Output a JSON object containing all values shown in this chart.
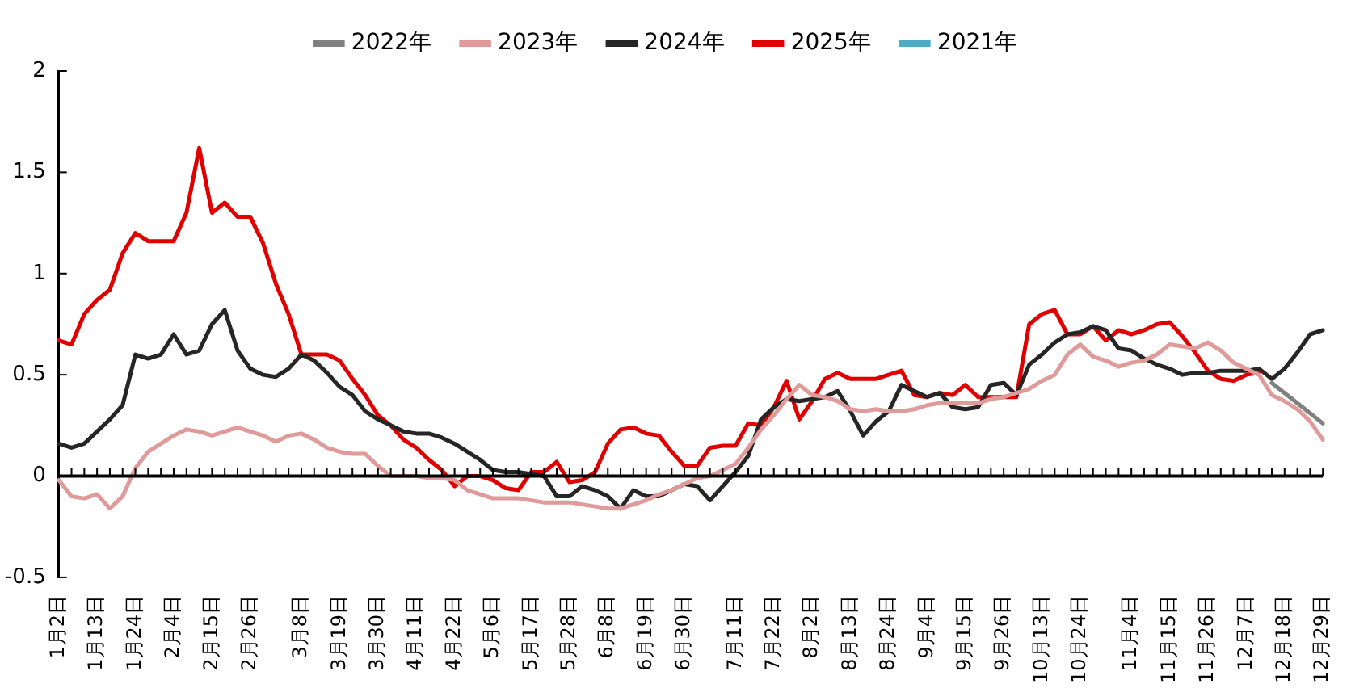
{
  "chart_data": {
    "type": "line",
    "legend": "top",
    "grid": false,
    "marker": "none",
    "line_style": "solid",
    "categories": [
      "1月2日",
      null,
      null,
      "1月13日",
      null,
      null,
      "1月24日",
      null,
      null,
      "2月4日",
      null,
      null,
      "2月15日",
      null,
      null,
      "2月26日",
      null,
      null,
      null,
      "3月8日",
      null,
      null,
      "3月19日",
      null,
      null,
      "3月30日",
      null,
      null,
      "4月11日",
      null,
      null,
      "4月22日",
      null,
      null,
      "5月6日",
      null,
      null,
      "5月17日",
      null,
      null,
      "5月28日",
      null,
      null,
      "6月8日",
      null,
      null,
      "6月19日",
      null,
      null,
      "6月30日",
      null,
      null,
      null,
      "7月11日",
      null,
      null,
      "7月22日",
      null,
      null,
      "8月2日",
      null,
      null,
      "8月13日",
      null,
      null,
      "8月24日",
      null,
      null,
      "9月4日",
      null,
      null,
      "9月15日",
      null,
      null,
      "9月26日",
      null,
      null,
      "10月13日",
      null,
      null,
      "10月24日",
      null,
      null,
      null,
      "11月4日",
      null,
      null,
      "11月15日",
      null,
      null,
      "11月26日",
      null,
      null,
      "12月7日",
      null,
      null,
      "12月18日",
      null,
      null,
      "12月29日"
    ],
    "ref_lines": [
      {
        "axis": "y",
        "value": 0,
        "color": "#000000",
        "line_style": "solid"
      }
    ],
    "ylim": [
      -0.5,
      2
    ],
    "yticks": [
      -0.5,
      0,
      0.5,
      1,
      1.5,
      2
    ],
    "series": [
      {
        "name": "2022年",
        "color": "#808080",
        "values": [
          null,
          null,
          null,
          null,
          null,
          null,
          null,
          null,
          null,
          null,
          null,
          null,
          null,
          null,
          null,
          null,
          null,
          null,
          null,
          null,
          null,
          null,
          null,
          null,
          null,
          null,
          null,
          null,
          null,
          null,
          null,
          null,
          null,
          null,
          null,
          null,
          null,
          null,
          null,
          null,
          null,
          null,
          null,
          null,
          null,
          null,
          null,
          null,
          null,
          null,
          null,
          null,
          null,
          null,
          null,
          null,
          null,
          null,
          null,
          null,
          null,
          null,
          null,
          null,
          null,
          null,
          null,
          null,
          null,
          null,
          null,
          null,
          null,
          null,
          null,
          null,
          null,
          null,
          null,
          null,
          null,
          null,
          null,
          null,
          null,
          null,
          null,
          null,
          null,
          null,
          null,
          null,
          null,
          null,
          null,
          0.46,
          0.41,
          0.36,
          0.31,
          0.26
        ]
      },
      {
        "name": "2023年",
        "color": "#e09a9a",
        "values": [
          -0.02,
          -0.1,
          -0.11,
          -0.09,
          -0.16,
          -0.1,
          0.04,
          0.12,
          0.16,
          0.2,
          0.23,
          0.22,
          0.2,
          0.22,
          0.24,
          0.22,
          0.2,
          0.17,
          0.2,
          0.21,
          0.18,
          0.14,
          0.12,
          0.11,
          0.11,
          0.05,
          0,
          0,
          0,
          -0.01,
          -0.01,
          -0.02,
          -0.07,
          -0.09,
          -0.11,
          -0.11,
          -0.11,
          -0.12,
          -0.13,
          -0.13,
          -0.13,
          -0.14,
          -0.15,
          -0.16,
          -0.16,
          -0.14,
          -0.12,
          -0.09,
          -0.07,
          -0.04,
          -0.01,
          0,
          0.03,
          0.06,
          0.14,
          0.23,
          0.3,
          0.38,
          0.45,
          0.4,
          0.39,
          0.37,
          0.33,
          0.32,
          0.33,
          0.32,
          0.32,
          0.33,
          0.35,
          0.36,
          0.36,
          0.36,
          0.36,
          0.38,
          0.39,
          0.41,
          0.43,
          0.47,
          0.5,
          0.6,
          0.65,
          0.59,
          0.57,
          0.54,
          0.56,
          0.57,
          0.6,
          0.65,
          0.64,
          0.63,
          0.66,
          0.62,
          0.56,
          0.53,
          0.5,
          0.4,
          0.37,
          0.33,
          0.27,
          0.18
        ]
      },
      {
        "name": "2024年",
        "color": "#262626",
        "values": [
          0.16,
          0.14,
          0.16,
          0.22,
          0.28,
          0.35,
          0.6,
          0.58,
          0.6,
          0.7,
          0.6,
          0.62,
          0.75,
          0.82,
          0.62,
          0.53,
          0.5,
          0.49,
          0.53,
          0.6,
          0.57,
          0.51,
          0.44,
          0.4,
          0.32,
          0.28,
          0.25,
          0.22,
          0.21,
          0.21,
          0.19,
          0.16,
          0.12,
          0.08,
          0.03,
          0.02,
          0.02,
          0.01,
          0,
          -0.1,
          -0.1,
          -0.05,
          -0.07,
          -0.1,
          -0.16,
          -0.07,
          -0.1,
          -0.1,
          -0.07,
          -0.04,
          -0.05,
          -0.12,
          -0.05,
          0.02,
          0.1,
          0.28,
          0.34,
          0.38,
          0.37,
          0.38,
          0.39,
          0.42,
          0.32,
          0.2,
          0.27,
          0.32,
          0.45,
          0.42,
          0.39,
          0.41,
          0.34,
          0.33,
          0.34,
          0.45,
          0.46,
          0.4,
          0.55,
          0.6,
          0.66,
          0.7,
          0.71,
          0.74,
          0.72,
          0.63,
          0.62,
          0.58,
          0.55,
          0.53,
          0.5,
          0.51,
          0.51,
          0.52,
          0.52,
          0.52,
          0.53,
          0.48,
          0.53,
          0.61,
          0.7,
          0.72
        ]
      },
      {
        "name": "2025年",
        "color": "#e00000",
        "values": [
          0.67,
          0.65,
          0.8,
          0.87,
          0.92,
          1.1,
          1.2,
          1.16,
          1.16,
          1.16,
          1.3,
          1.62,
          1.3,
          1.35,
          1.28,
          1.28,
          1.15,
          0.95,
          0.8,
          0.6,
          0.6,
          0.6,
          0.57,
          0.48,
          0.4,
          0.3,
          0.25,
          0.18,
          0.14,
          0.08,
          0.03,
          -0.05,
          0,
          0,
          -0.02,
          -0.06,
          -0.07,
          0.02,
          0.02,
          0.07,
          -0.03,
          -0.02,
          0.02,
          0.16,
          0.23,
          0.24,
          0.21,
          0.2,
          0.12,
          0.05,
          0.05,
          0.14,
          0.15,
          0.15,
          0.26,
          0.25,
          0.34,
          0.47,
          0.28,
          0.37,
          0.48,
          0.51,
          0.48,
          0.48,
          0.48,
          0.5,
          0.52,
          0.4,
          0.39,
          0.41,
          0.4,
          0.45,
          0.39,
          0.39,
          0.39,
          0.39,
          0.75,
          0.8,
          0.82,
          0.7,
          0.7,
          0.74,
          0.67,
          0.72,
          0.7,
          0.72,
          0.75,
          0.76,
          0.69,
          0.61,
          0.52,
          0.48,
          0.47,
          0.5,
          0.51,
          null,
          null,
          null,
          null,
          null
        ]
      },
      {
        "name": "2021年",
        "color": "#4bacc6",
        "values": [
          null,
          null,
          null,
          null,
          null,
          null,
          null,
          null,
          null,
          null,
          null,
          null,
          null,
          null,
          null,
          null,
          null,
          null,
          null,
          null,
          null,
          null,
          null,
          null,
          null,
          null,
          null,
          null,
          null,
          null,
          null,
          null,
          null,
          null,
          null,
          null,
          null,
          null,
          null,
          null,
          null,
          null,
          null,
          null,
          null,
          null,
          null,
          null,
          null,
          null,
          null,
          null,
          null,
          null,
          null,
          null,
          null,
          null,
          null,
          null,
          null,
          null,
          null,
          null,
          null,
          null,
          null,
          null,
          null,
          null,
          null,
          null,
          null,
          null,
          null,
          null,
          null,
          null,
          null,
          null,
          null,
          null,
          null,
          null,
          null,
          null,
          null,
          null,
          null,
          null,
          null,
          null,
          null,
          null,
          null,
          null,
          null,
          null,
          null,
          null
        ]
      }
    ]
  }
}
